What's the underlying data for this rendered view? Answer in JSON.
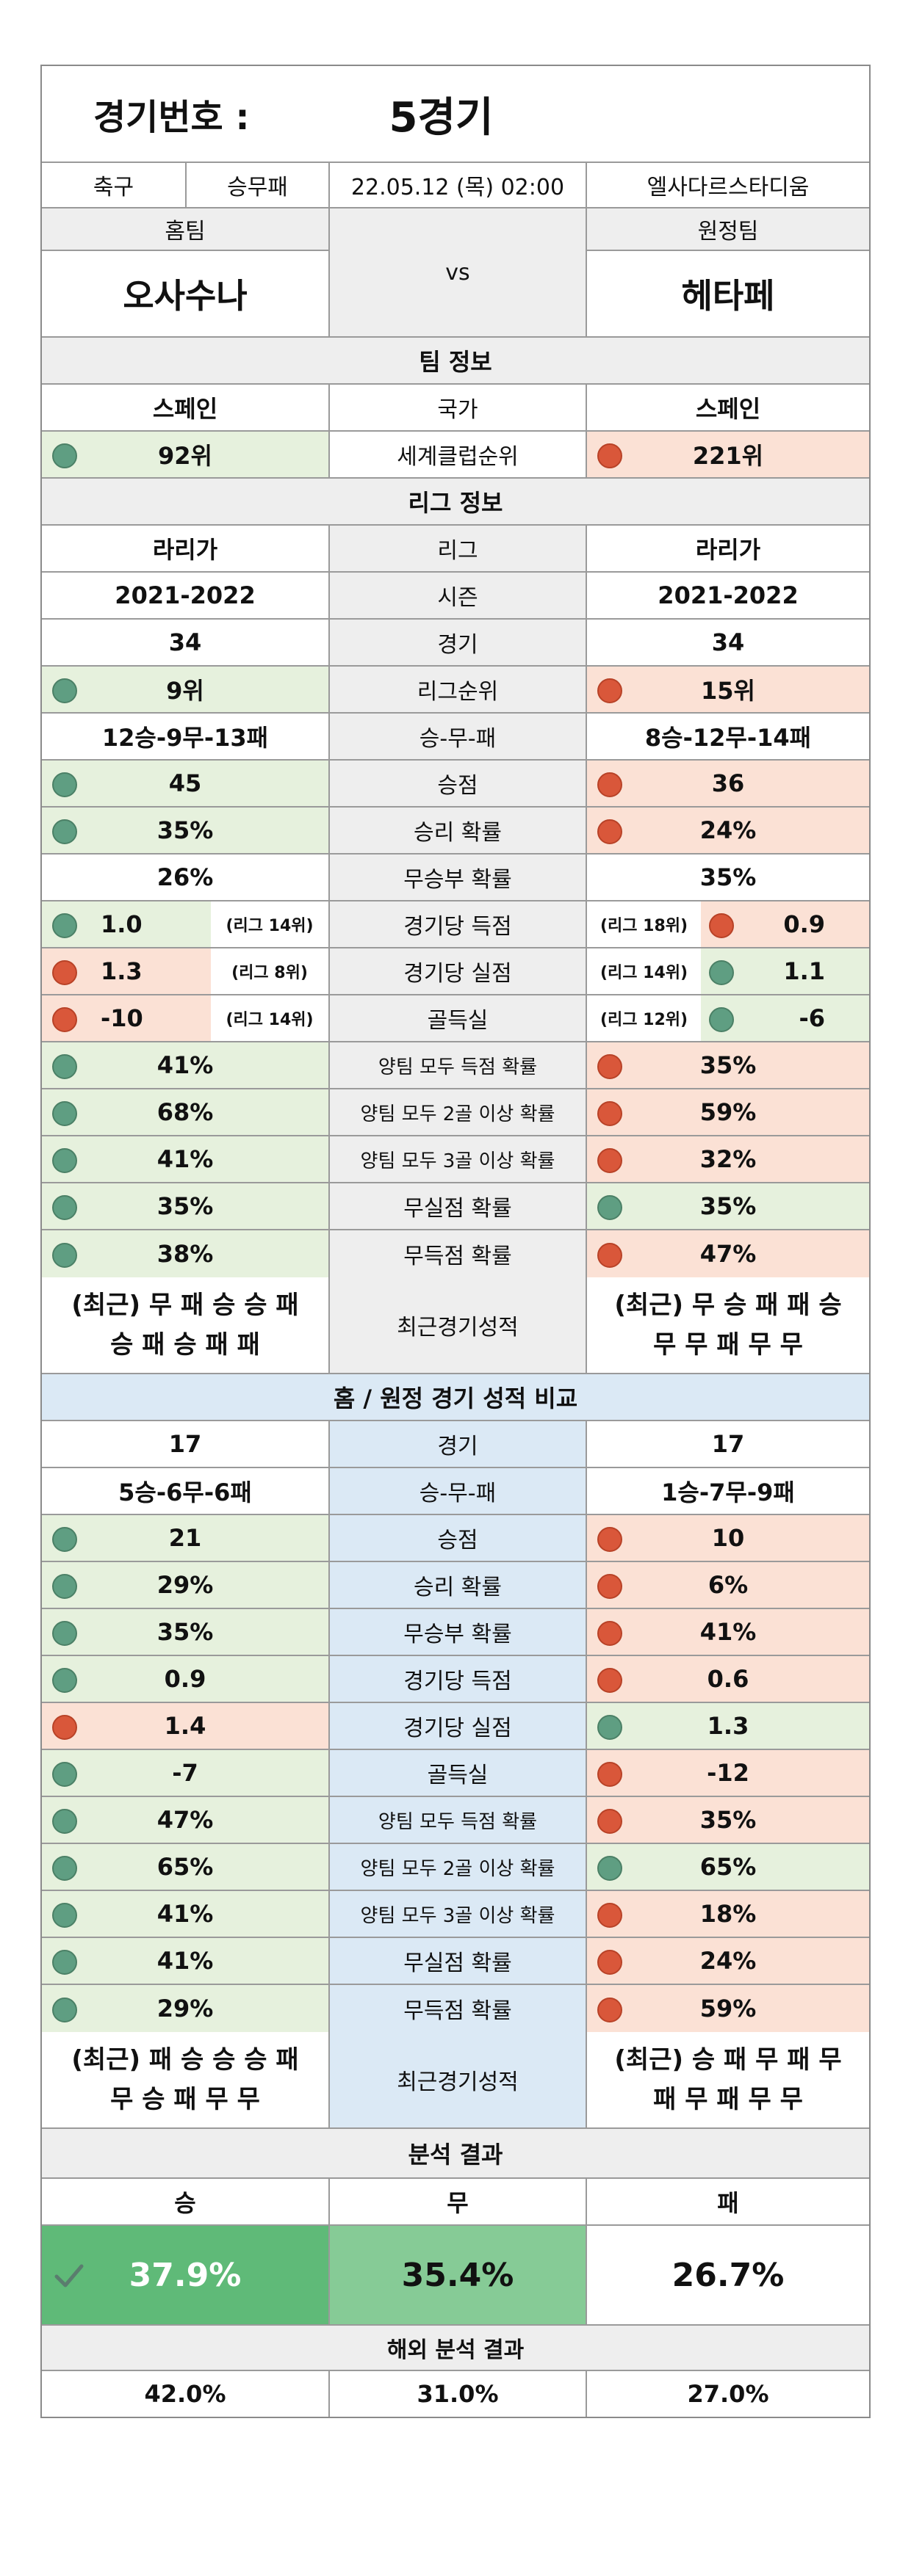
{
  "header": {
    "label": "경기번호 :",
    "match_no": "5경기",
    "sport": "축구",
    "bet_type": "승무패",
    "datetime": "22.05.12 (목) 02:00",
    "stadium": "엘사다르스타디움"
  },
  "teams": {
    "home_label": "홈팀",
    "away_label": "원정팀",
    "vs": "vs",
    "home": "오사수나",
    "away": "헤타페"
  },
  "team_info": {
    "title": "팀 정보",
    "country_label": "국가",
    "home_country": "스페인",
    "away_country": "스페인",
    "rank_label": "세계클럽순위",
    "home_rank": "92위",
    "away_rank": "221위"
  },
  "league_info": {
    "title": "리그 정보",
    "rows": [
      {
        "label": "리그",
        "home": "라리가",
        "away": "라리가",
        "hs": "",
        "as": "",
        "hc": "",
        "ac": ""
      },
      {
        "label": "시즌",
        "home": "2021-2022",
        "away": "2021-2022",
        "hs": "",
        "as": "",
        "hc": "",
        "ac": ""
      },
      {
        "label": "경기",
        "home": "34",
        "away": "34",
        "hs": "",
        "as": "",
        "hc": "",
        "ac": ""
      },
      {
        "label": "리그순위",
        "home": "9위",
        "away": "15위",
        "hs": "",
        "as": "",
        "hc": "g",
        "ac": "r"
      },
      {
        "label": "승-무-패",
        "home": "12승-9무-13패",
        "away": "8승-12무-14패",
        "hs": "",
        "as": "",
        "hc": "",
        "ac": ""
      },
      {
        "label": "승점",
        "home": "45",
        "away": "36",
        "hs": "",
        "as": "",
        "hc": "g",
        "ac": "r"
      },
      {
        "label": "승리 확률",
        "home": "35%",
        "away": "24%",
        "hs": "",
        "as": "",
        "hc": "g",
        "ac": "r"
      },
      {
        "label": "무승부 확률",
        "home": "26%",
        "away": "35%",
        "hs": "",
        "as": "",
        "hc": "",
        "ac": ""
      },
      {
        "label": "경기당 득점",
        "home": "1.0",
        "away": "0.9",
        "hs": "(리그 14위)",
        "as": "(리그 18위)",
        "hc": "g",
        "ac": "r"
      },
      {
        "label": "경기당 실점",
        "home": "1.3",
        "away": "1.1",
        "hs": "(리그 8위)",
        "as": "(리그 14위)",
        "hc": "r",
        "ac": "g"
      },
      {
        "label": "골득실",
        "home": "-10",
        "away": "-6",
        "hs": "(리그 14위)",
        "as": "(리그 12위)",
        "hc": "r",
        "ac": "g"
      },
      {
        "label": "양팀 모두 득점 확률",
        "home": "41%",
        "away": "35%",
        "hs": "",
        "as": "",
        "hc": "g",
        "ac": "r"
      },
      {
        "label": "양팀 모두 2골 이상 확률",
        "home": "68%",
        "away": "59%",
        "hs": "",
        "as": "",
        "hc": "g",
        "ac": "r"
      },
      {
        "label": "양팀 모두 3골 이상 확률",
        "home": "41%",
        "away": "32%",
        "hs": "",
        "as": "",
        "hc": "g",
        "ac": "r"
      },
      {
        "label": "무실점 확률",
        "home": "35%",
        "away": "35%",
        "hs": "",
        "as": "",
        "hc": "g",
        "ac": "g"
      },
      {
        "label": "무득점 확률",
        "home": "38%",
        "away": "47%",
        "hs": "",
        "as": "",
        "hc": "g",
        "ac": "r"
      }
    ],
    "recent_label": "최근경기성적",
    "home_recent_1": "(최근) 무 패 승 승 패",
    "home_recent_2": "승 패 승 패 패",
    "away_recent_1": "(최근) 무 승 패 패 승",
    "away_recent_2": "무 무 패 무 무"
  },
  "homeaway": {
    "title": "홈 / 원정 경기 성적 비교",
    "rows": [
      {
        "label": "경기",
        "home": "17",
        "away": "17",
        "hc": "",
        "ac": ""
      },
      {
        "label": "승-무-패",
        "home": "5승-6무-6패",
        "away": "1승-7무-9패",
        "hc": "",
        "ac": ""
      },
      {
        "label": "승점",
        "home": "21",
        "away": "10",
        "hc": "g",
        "ac": "r"
      },
      {
        "label": "승리 확률",
        "home": "29%",
        "away": "6%",
        "hc": "g",
        "ac": "r"
      },
      {
        "label": "무승부 확률",
        "home": "35%",
        "away": "41%",
        "hc": "g",
        "ac": "r"
      },
      {
        "label": "경기당 득점",
        "home": "0.9",
        "away": "0.6",
        "hc": "g",
        "ac": "r"
      },
      {
        "label": "경기당 실점",
        "home": "1.4",
        "away": "1.3",
        "hc": "r",
        "ac": "g"
      },
      {
        "label": "골득실",
        "home": "-7",
        "away": "-12",
        "hc": "g",
        "ac": "r"
      },
      {
        "label": "양팀 모두 득점 확률",
        "home": "47%",
        "away": "35%",
        "hc": "g",
        "ac": "r"
      },
      {
        "label": "양팀 모두 2골 이상 확률",
        "home": "65%",
        "away": "65%",
        "hc": "g",
        "ac": "g"
      },
      {
        "label": "양팀 모두 3골 이상 확률",
        "home": "41%",
        "away": "18%",
        "hc": "g",
        "ac": "r"
      },
      {
        "label": "무실점 확률",
        "home": "41%",
        "away": "24%",
        "hc": "g",
        "ac": "r"
      },
      {
        "label": "무득점 확률",
        "home": "29%",
        "away": "59%",
        "hc": "g",
        "ac": "r"
      }
    ],
    "recent_label": "최근경기성적",
    "home_recent_1": "(최근) 패 승 승 승 패",
    "home_recent_2": "무 승 패 무 무",
    "away_recent_1": "(최근) 승 패 무 패 무",
    "away_recent_2": "패 무 패 무 무"
  },
  "analysis": {
    "title": "분석 결과",
    "win_label": "승",
    "draw_label": "무",
    "loss_label": "패",
    "win": "37.9%",
    "draw": "35.4%",
    "loss": "26.7%",
    "overseas_title": "해외 분석 결과",
    "overseas_win": "42.0%",
    "overseas_draw": "31.0%",
    "overseas_loss": "27.0%"
  },
  "colors": {
    "green_bg": "#e6f1dd",
    "red_bg": "#fbe1d5",
    "green_dot": "#5f9e82",
    "red_dot": "#d9573a",
    "win_box": "#5fba78",
    "draw_box": "#86cb96"
  }
}
